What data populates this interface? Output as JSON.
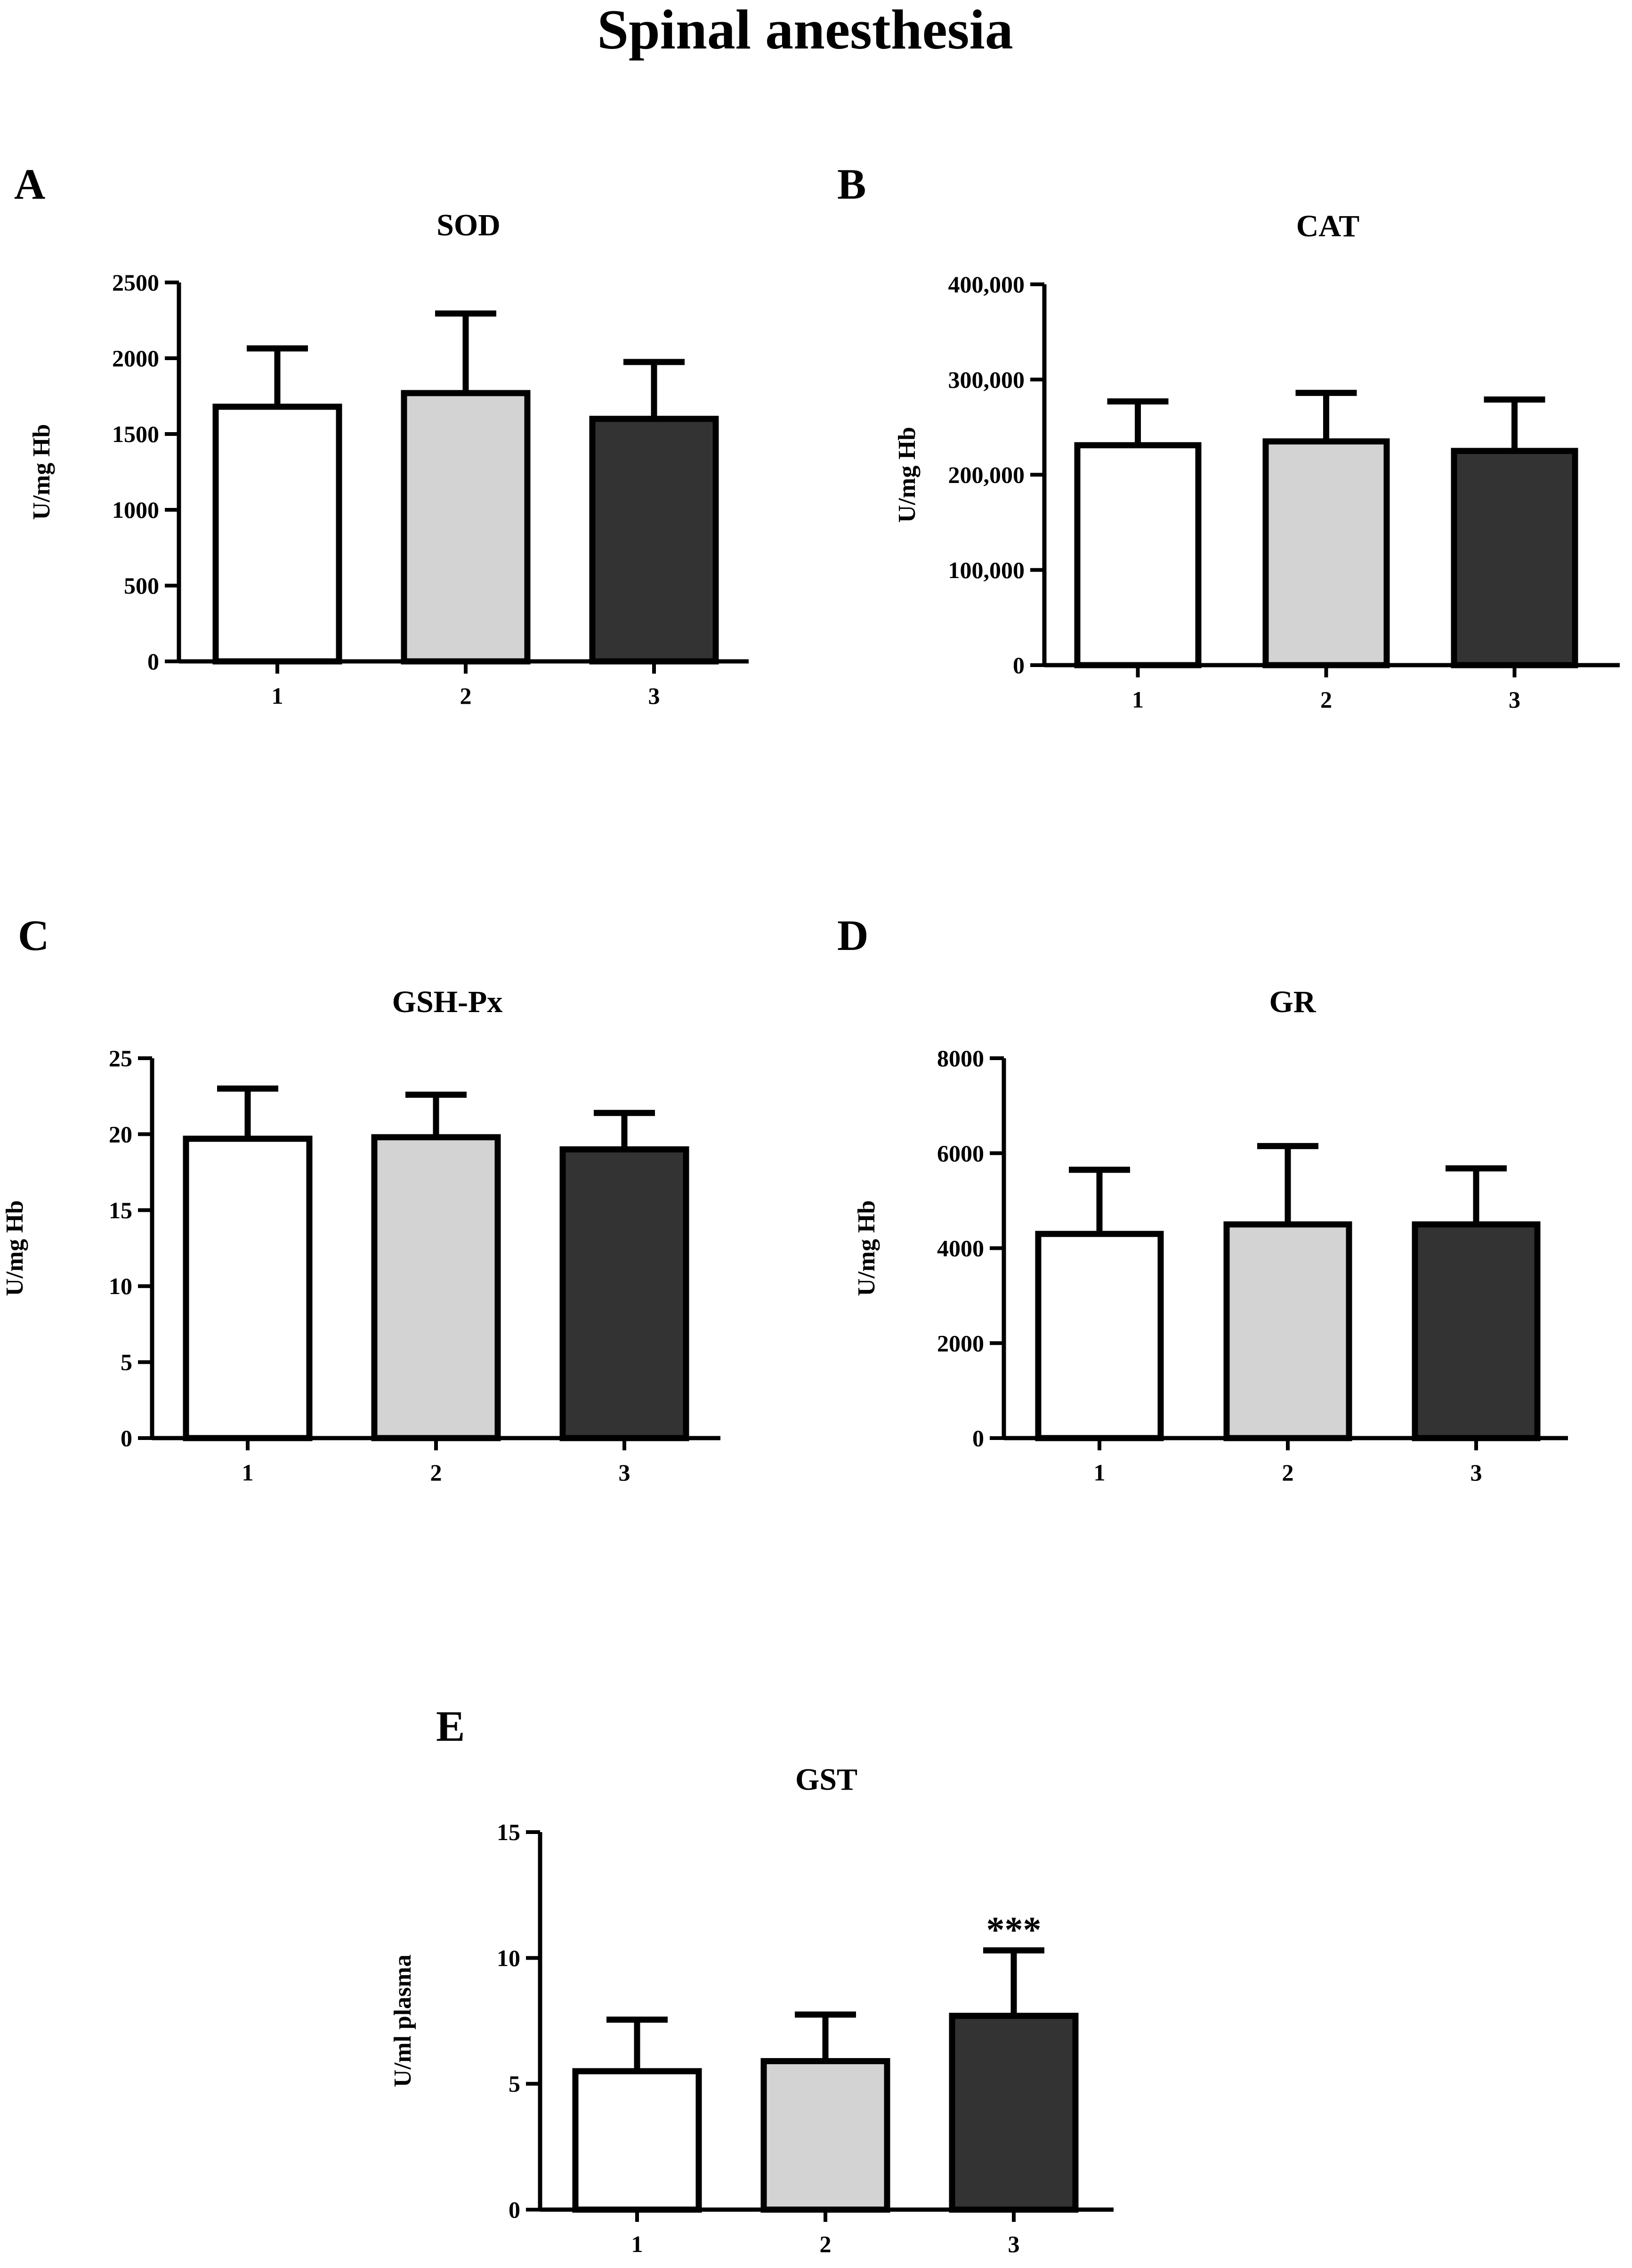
{
  "figure_title": "Spinal anesthesia",
  "colors": {
    "group_1": "#ffffff",
    "group_2": "#d3d3d3",
    "group_3": "#333333",
    "stroke": "#000000"
  },
  "chart_data": [
    {
      "panel": "A",
      "type": "bar",
      "title": "SOD",
      "ylabel": "U/mg Hb",
      "categories": [
        "1",
        "2",
        "3"
      ],
      "values": [
        1680,
        1770,
        1600
      ],
      "error_upper": [
        2065,
        2295,
        1975
      ],
      "ylim": [
        0,
        2500
      ],
      "yticks": [
        0,
        500,
        1000,
        1500,
        2000,
        2500
      ],
      "ytick_labels": [
        "0",
        "500",
        "1000",
        "1500",
        "2000",
        "2500"
      ],
      "annotations": [
        "",
        "",
        ""
      ]
    },
    {
      "panel": "B",
      "type": "bar",
      "title": "CAT",
      "ylabel": "U/mg Hb",
      "categories": [
        "1",
        "2",
        "3"
      ],
      "values": [
        231000,
        235000,
        225000
      ],
      "error_upper": [
        277000,
        286000,
        279000
      ],
      "ylim": [
        0,
        400000
      ],
      "yticks": [
        0,
        100000,
        200000,
        300000,
        400000
      ],
      "ytick_labels": [
        "0",
        "100,000",
        "200,000",
        "300,000",
        "400,000"
      ],
      "annotations": [
        "",
        "",
        ""
      ]
    },
    {
      "panel": "C",
      "type": "bar",
      "title": "GSH-Px",
      "ylabel": "U/mg Hb",
      "categories": [
        "1",
        "2",
        "3"
      ],
      "values": [
        19.7,
        19.8,
        19.0
      ],
      "error_upper": [
        23.0,
        22.6,
        21.4
      ],
      "ylim": [
        0,
        25
      ],
      "yticks": [
        0,
        5,
        10,
        15,
        20,
        25
      ],
      "ytick_labels": [
        "0",
        "5",
        "10",
        "15",
        "20",
        "25"
      ],
      "annotations": [
        "",
        "",
        ""
      ]
    },
    {
      "panel": "D",
      "type": "bar",
      "title": "GR",
      "ylabel": "U/mg Hb",
      "categories": [
        "1",
        "2",
        "3"
      ],
      "values": [
        4300,
        4500,
        4500
      ],
      "error_upper": [
        5650,
        6150,
        5680
      ],
      "ylim": [
        0,
        8000
      ],
      "yticks": [
        0,
        2000,
        4000,
        6000,
        8000
      ],
      "ytick_labels": [
        "0",
        "2000",
        "4000",
        "6000",
        "8000"
      ],
      "annotations": [
        "",
        "",
        ""
      ]
    },
    {
      "panel": "E",
      "type": "bar",
      "title": "GST",
      "ylabel": "U/ml plasma",
      "categories": [
        "1",
        "2",
        "3"
      ],
      "values": [
        5.5,
        5.9,
        7.7
      ],
      "error_upper": [
        7.55,
        7.75,
        10.3
      ],
      "ylim": [
        0,
        15
      ],
      "yticks": [
        0,
        5,
        10,
        15
      ],
      "ytick_labels": [
        "0",
        "5",
        "10",
        "15"
      ],
      "annotations": [
        "",
        "",
        "***"
      ]
    }
  ]
}
